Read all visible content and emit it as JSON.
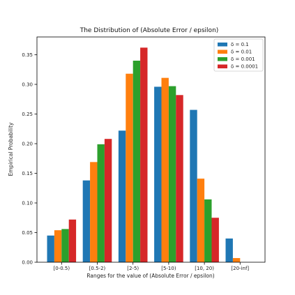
{
  "chart_data": {
    "type": "bar",
    "title": "The Distribution of (Absolute Error / epsilon)",
    "xlabel": "Ranges for the value of (Absolute Error / epsilon)",
    "ylabel": "Empirical Probability",
    "ylim": [
      0,
      0.38
    ],
    "yticks": [
      "0.00",
      "0.05",
      "0.10",
      "0.15",
      "0.20",
      "0.25",
      "0.30",
      "0.35"
    ],
    "ytick_values": [
      0,
      0.05,
      0.1,
      0.15,
      0.2,
      0.25,
      0.3,
      0.35
    ],
    "categories": [
      "[0-0.5)",
      "[0.5-2)",
      "[2-5)",
      "[5-10)",
      "[10, 20)",
      "[20-inf]"
    ],
    "grid": false,
    "legend_position": "top-right",
    "series": [
      {
        "name": "δ = 0.1",
        "color": "#1f77b4",
        "values": [
          0.045,
          0.138,
          0.222,
          0.296,
          0.257,
          0.04
        ]
      },
      {
        "name": "δ = 0.01",
        "color": "#ff7f0e",
        "values": [
          0.054,
          0.169,
          0.318,
          0.311,
          0.141,
          0.007
        ]
      },
      {
        "name": "δ = 0.001",
        "color": "#2ca02c",
        "values": [
          0.056,
          0.199,
          0.34,
          0.297,
          0.106,
          0.0
        ]
      },
      {
        "name": "δ = 0.0001",
        "color": "#d62728",
        "values": [
          0.072,
          0.208,
          0.362,
          0.282,
          0.075,
          0.0
        ]
      }
    ]
  }
}
